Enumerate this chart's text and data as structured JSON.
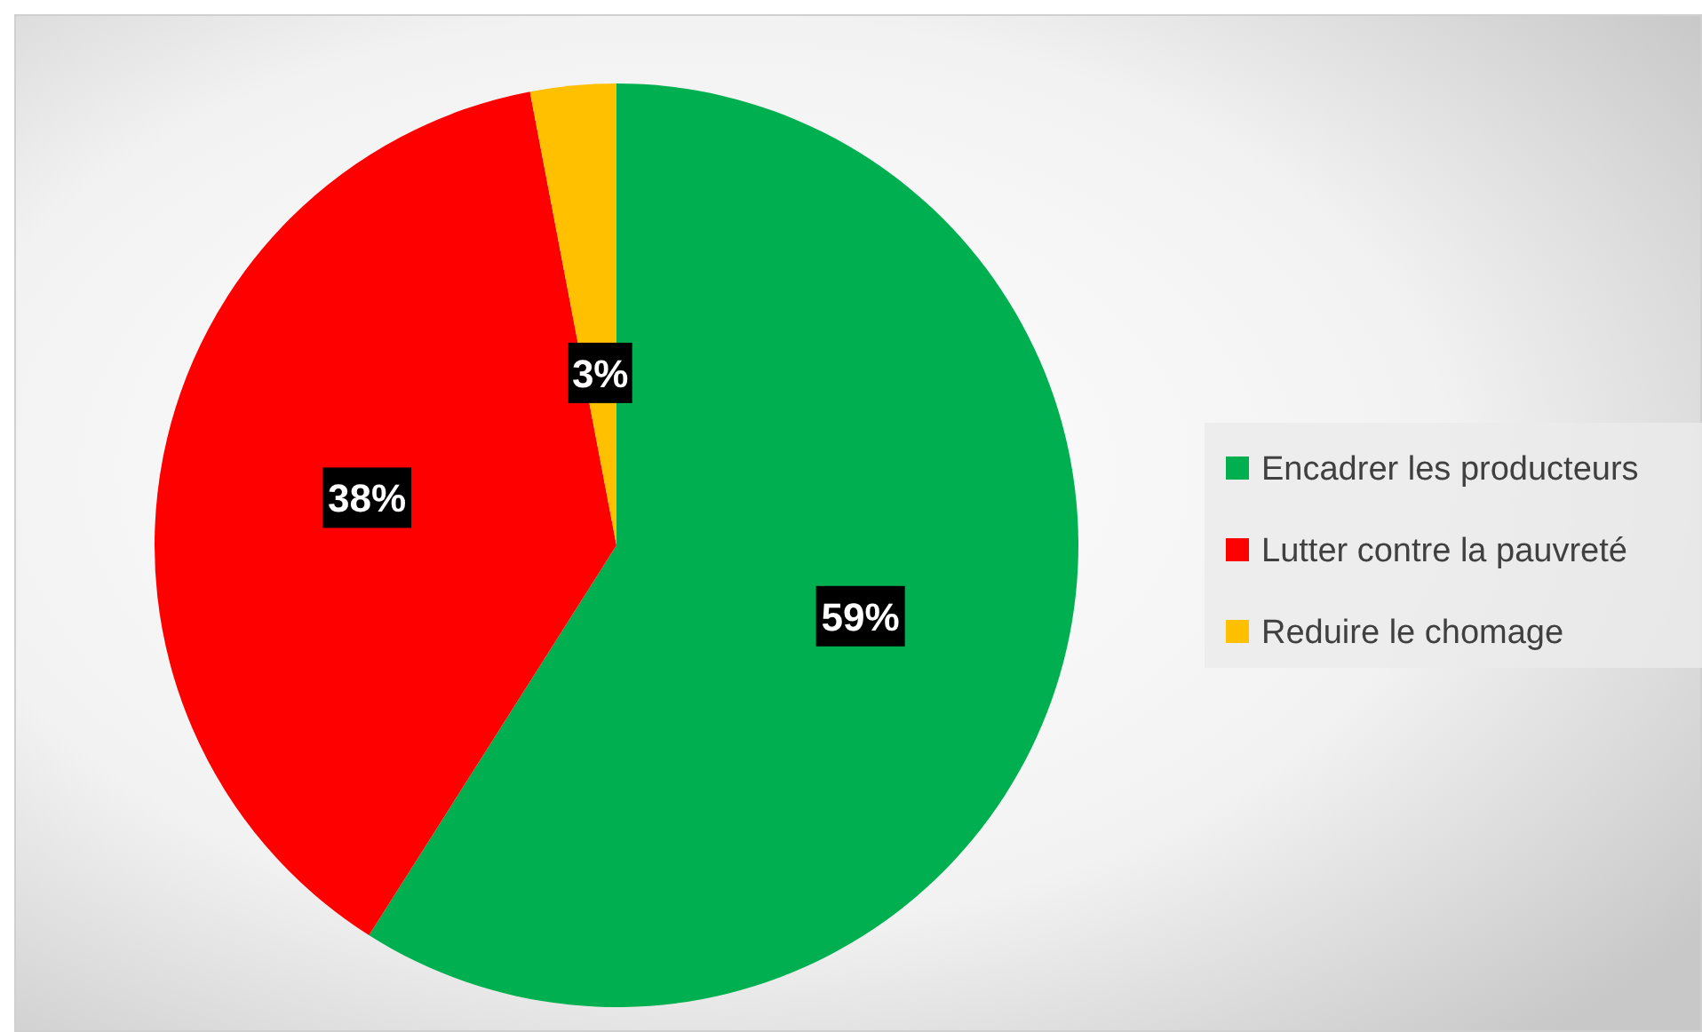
{
  "chart_data": {
    "type": "pie",
    "categories": [
      "Encadrer les producteurs",
      "Lutter contre la pauvreté",
      "Reduire le chomage"
    ],
    "values": [
      59,
      38,
      3
    ],
    "colors": [
      "#00b050",
      "#ff0000",
      "#ffc000"
    ],
    "value_labels": [
      "59%",
      "38%",
      "3%"
    ],
    "legend": "right"
  }
}
